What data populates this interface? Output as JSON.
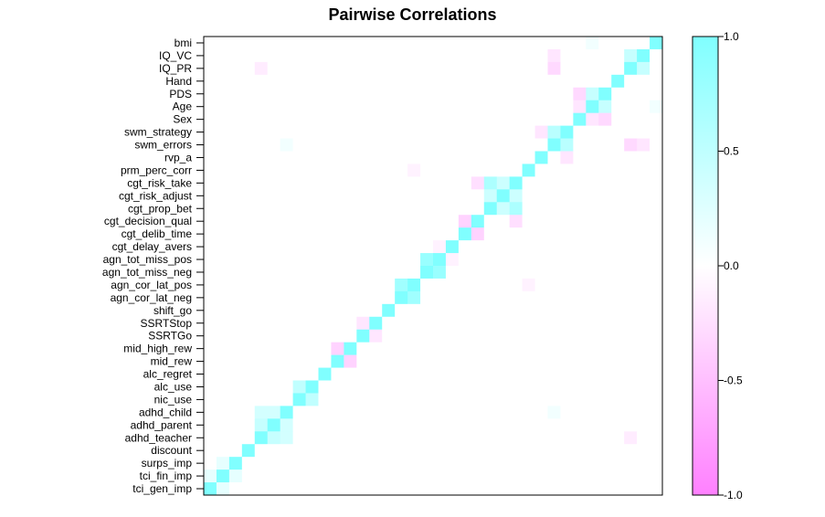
{
  "chart_data": {
    "type": "heatmap",
    "title": "Pairwise Correlations",
    "variables_top_to_bottom": [
      "bmi",
      "IQ_VC",
      "IQ_PR",
      "Hand",
      "PDS",
      "Age",
      "Sex",
      "swm_strategy",
      "swm_errors",
      "rvp_a",
      "prm_perc_corr",
      "cgt_risk_take",
      "cgt_risk_adjust",
      "cgt_prop_bet",
      "cgt_decision_qual",
      "cgt_delib_time",
      "cgt_delay_avers",
      "agn_tot_miss_pos",
      "agn_tot_miss_neg",
      "agn_cor_lat_pos",
      "agn_cor_lat_neg",
      "shift_go",
      "SSRTStop",
      "SSRTGo",
      "mid_high_rew",
      "mid_rew",
      "alc_regret",
      "alc_use",
      "nic_use",
      "adhd_child",
      "adhd_parent",
      "adhd_teacher",
      "discount",
      "surps_imp",
      "tci_fin_imp",
      "tci_gen_imp"
    ],
    "column_order": "columns left-to-right follow the reverse of variables_top_to_bottom (tci_gen_imp first); diagonal runs bottom-left to top-right",
    "colorscale": {
      "min": -1.0,
      "max": 1.0,
      "low_color": "#ff80ff",
      "mid_color": "#ffffff",
      "high_color": "#80ffff"
    },
    "colorbar_ticks": [
      "1.0",
      "0.5",
      "0.0",
      "-0.5",
      "-1.0"
    ],
    "colorbar_tick_values": [
      1.0,
      0.5,
      0.0,
      -0.5,
      -1.0
    ],
    "strong_pairs": [
      {
        "a": "IQ_VC",
        "b": "IQ_PR",
        "r": 0.45
      },
      {
        "a": "PDS",
        "b": "Age",
        "r": 0.45
      },
      {
        "a": "PDS",
        "b": "Sex",
        "r": -0.3
      },
      {
        "a": "Age",
        "b": "Sex",
        "r": -0.2
      },
      {
        "a": "swm_strategy",
        "b": "swm_errors",
        "r": 0.55
      },
      {
        "a": "cgt_risk_take",
        "b": "cgt_risk_adjust",
        "r": 0.4
      },
      {
        "a": "cgt_risk_take",
        "b": "cgt_prop_bet",
        "r": 0.65
      },
      {
        "a": "cgt_risk_adjust",
        "b": "cgt_prop_bet",
        "r": 0.4
      },
      {
        "a": "cgt_decision_qual",
        "b": "cgt_risk_take",
        "r": -0.25
      },
      {
        "a": "cgt_decision_qual",
        "b": "cgt_delib_time",
        "r": -0.35
      },
      {
        "a": "agn_tot_miss_pos",
        "b": "agn_tot_miss_neg",
        "r": 0.8
      },
      {
        "a": "agn_cor_lat_pos",
        "b": "agn_cor_lat_neg",
        "r": 0.75
      },
      {
        "a": "SSRTStop",
        "b": "SSRTGo",
        "r": -0.2
      },
      {
        "a": "mid_high_rew",
        "b": "mid_rew",
        "r": -0.35
      },
      {
        "a": "alc_use",
        "b": "nic_use",
        "r": 0.5
      },
      {
        "a": "adhd_child",
        "b": "adhd_parent",
        "r": 0.35
      },
      {
        "a": "adhd_child",
        "b": "adhd_teacher",
        "r": 0.35
      },
      {
        "a": "adhd_parent",
        "b": "adhd_teacher",
        "r": 0.45
      },
      {
        "a": "surps_imp",
        "b": "tci_fin_imp",
        "r": 0.2
      },
      {
        "a": "tci_fin_imp",
        "b": "tci_gen_imp",
        "r": 0.2
      },
      {
        "a": "IQ_PR",
        "b": "swm_errors",
        "r": -0.3
      },
      {
        "a": "IQ_VC",
        "b": "swm_errors",
        "r": -0.2
      },
      {
        "a": "swm_strategy",
        "b": "rvp_a",
        "r": -0.2
      },
      {
        "a": "bmi",
        "b": "Age",
        "r": 0.1
      },
      {
        "a": "agn_tot_miss_pos",
        "b": "cgt_delay_avers",
        "r": -0.1
      },
      {
        "a": "agn_cor_lat_pos",
        "b": "prm_perc_corr",
        "r": -0.1
      },
      {
        "a": "adhd_teacher",
        "b": "IQ_PR",
        "r": -0.15
      },
      {
        "a": "adhd_child",
        "b": "swm_errors",
        "r": 0.1
      }
    ],
    "default_r": 0.0
  }
}
